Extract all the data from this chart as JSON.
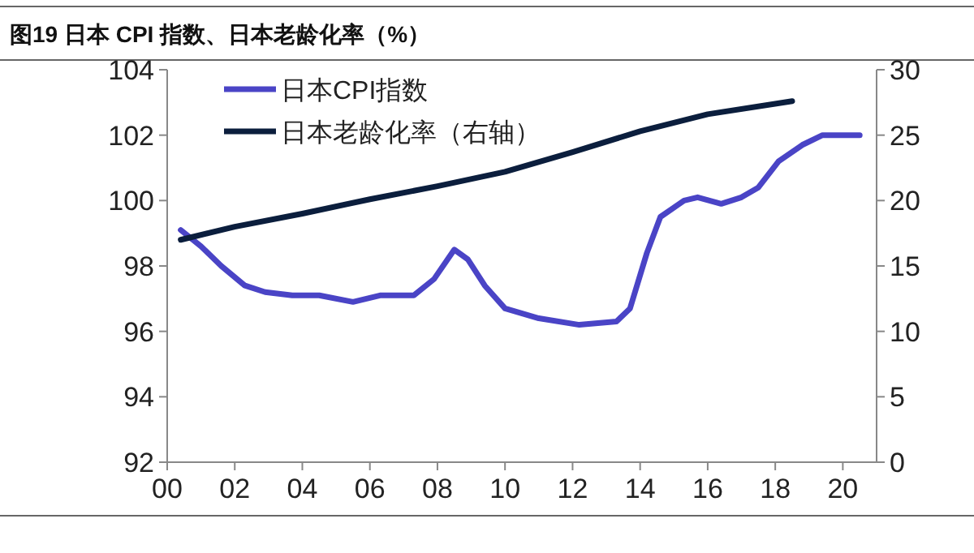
{
  "chart_data": {
    "type": "line",
    "title": "图19 日本 CPI 指数、日本老龄化率（%）",
    "xlim": [
      2000,
      2021
    ],
    "xticks": [
      {
        "value": 2000,
        "label": "00"
      },
      {
        "value": 2002,
        "label": "02"
      },
      {
        "value": 2004,
        "label": "04"
      },
      {
        "value": 2006,
        "label": "06"
      },
      {
        "value": 2008,
        "label": "08"
      },
      {
        "value": 2010,
        "label": "10"
      },
      {
        "value": 2012,
        "label": "12"
      },
      {
        "value": 2014,
        "label": "14"
      },
      {
        "value": 2016,
        "label": "16"
      },
      {
        "value": 2018,
        "label": "18"
      },
      {
        "value": 2020,
        "label": "20"
      }
    ],
    "ylim": [
      92,
      104
    ],
    "yticks": [
      92,
      94,
      96,
      98,
      100,
      102,
      104
    ],
    "y2lim": [
      0,
      30
    ],
    "y2ticks": [
      0,
      5,
      10,
      15,
      20,
      25,
      30
    ],
    "legend": "top left",
    "grid": false,
    "marker": "none",
    "line_style": "solid",
    "series": [
      {
        "name": "日本CPI指数",
        "color": "#4a44c6",
        "x": [
          2000.4,
          2001.0,
          2001.6,
          2002.3,
          2002.9,
          2003.7,
          2004.5,
          2005.5,
          2006.3,
          2007.3,
          2007.9,
          2008.5,
          2008.9,
          2009.4,
          2010.0,
          2011.0,
          2012.2,
          2013.3,
          2013.7,
          2014.2,
          2014.6,
          2015.3,
          2015.7,
          2016.4,
          2017.0,
          2017.5,
          2018.1,
          2018.8,
          2019.4,
          2020.5
        ],
        "values": [
          99.1,
          98.6,
          98.0,
          97.4,
          97.2,
          97.1,
          97.1,
          96.9,
          97.1,
          97.1,
          97.6,
          98.5,
          98.2,
          97.4,
          96.7,
          96.4,
          96.2,
          96.3,
          96.7,
          98.4,
          99.5,
          100.0,
          100.1,
          99.9,
          100.1,
          100.4,
          101.2,
          101.7,
          102.0,
          102.0
        ]
      },
      {
        "name": "日本老龄化率（右轴）",
        "color": "#0b1e3d",
        "axis": "y2",
        "x": [
          2000.4,
          2002,
          2004,
          2006,
          2008,
          2010,
          2012,
          2014,
          2016,
          2018.5
        ],
        "values": [
          17.0,
          18.0,
          19.0,
          20.1,
          21.1,
          22.2,
          23.7,
          25.3,
          26.6,
          27.6
        ]
      }
    ]
  }
}
